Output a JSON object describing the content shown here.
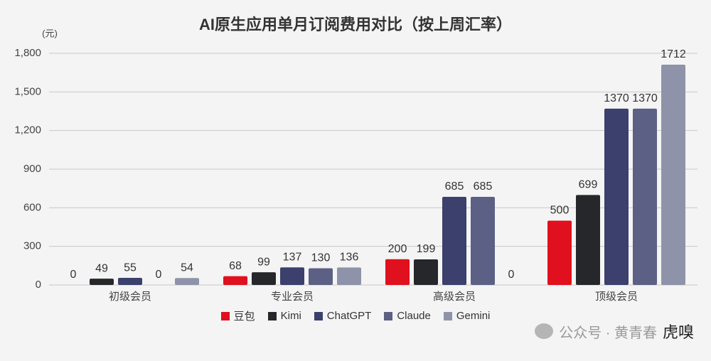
{
  "chart_data": {
    "type": "bar",
    "title": "AI原生应用单月订阅费用对比（按上周汇率）",
    "y_unit": "(元)",
    "categories": [
      "初级会员",
      "专业会员",
      "高级会员",
      "顶级会员"
    ],
    "series": [
      {
        "name": "豆包",
        "color": "#e0101e",
        "values": [
          0,
          68,
          200,
          500
        ]
      },
      {
        "name": "Kimi",
        "color": "#26272b",
        "values": [
          49,
          99,
          199,
          699
        ]
      },
      {
        "name": "ChatGPT",
        "color": "#3b406c",
        "values": [
          55,
          137,
          685,
          1370
        ]
      },
      {
        "name": "Claude",
        "color": "#5c6084",
        "values": [
          0,
          130,
          685,
          1370
        ]
      },
      {
        "name": "Gemini",
        "color": "#8f93a9",
        "values": [
          54,
          136,
          0,
          1712
        ]
      }
    ],
    "ylim": [
      0,
      1800
    ],
    "yticks": [
      0,
      300,
      600,
      900,
      {
        "value": 1200,
        "label": "1,200"
      },
      {
        "value": 1500,
        "label": "1,500"
      },
      {
        "value": 1800,
        "label": "1,800"
      }
    ],
    "grid": true,
    "legend": "bottom"
  },
  "watermark": "公众号 · 黄青春",
  "logo": "虎嗅"
}
